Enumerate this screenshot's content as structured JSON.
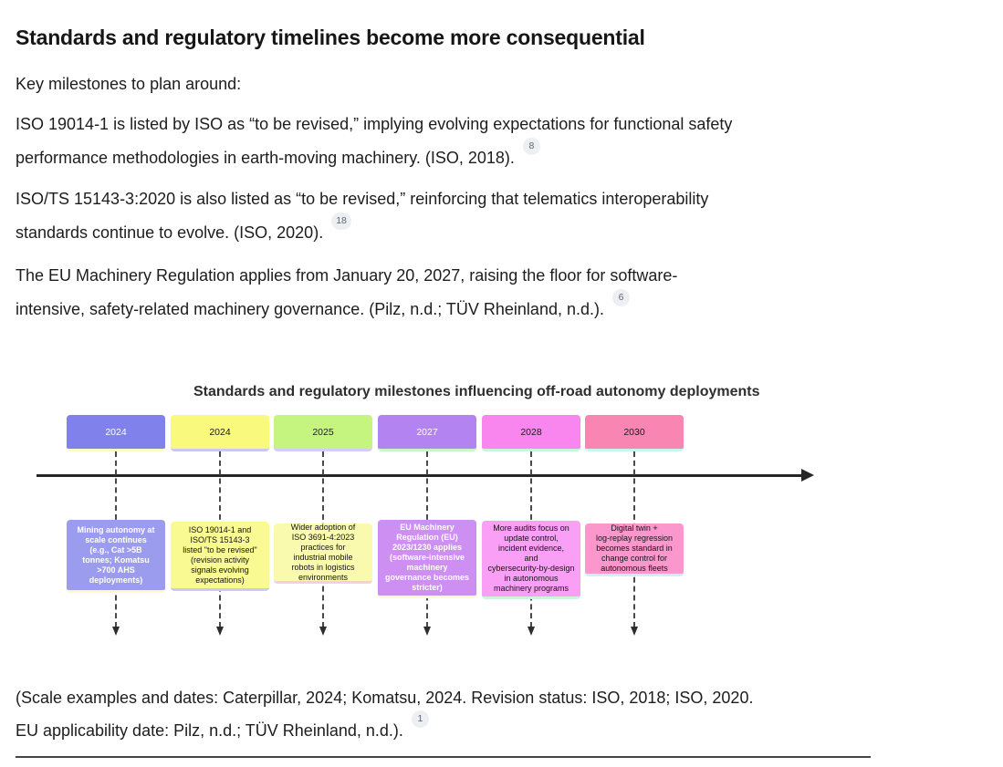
{
  "page": {
    "heading": "Standards and regulatory timelines become more consequential",
    "intro": "Key milestones to plan around:",
    "paragraphs": [
      {
        "lines": [
          "ISO 19014-1 is listed by ISO as “to be revised,” implying evolving expectations for functional safety",
          "performance methodologies in earth-moving machinery. (ISO, 2018)."
        ],
        "citation": "8"
      },
      {
        "lines": [
          "ISO/TS 15143-3:2020 is also listed as “to be revised,” reinforcing that telematics interoperability",
          "standards continue to evolve. (ISO, 2020)."
        ],
        "citation": "18"
      },
      {
        "lines": [
          "The EU Machinery Regulation applies from January 20, 2027, raising the floor for software-",
          "intensive, safety-related machinery governance. (Pilz, n.d.; TÜV Rheinland, n.d.)."
        ],
        "citation": "6"
      }
    ],
    "caption": {
      "lines": [
        "(Scale examples and dates: Caterpillar, 2024; Komatsu, 2024. Revision status: ISO, 2018; ISO, 2020.",
        "EU applicability date: Pilz, n.d.; TÜV Rheinland, n.d.)."
      ],
      "citation": "1"
    }
  },
  "chart_data": {
    "type": "timeline",
    "title": "Standards and regulatory milestones influencing off-road autonomy deployments",
    "axis_color": "#262626",
    "milestones": [
      {
        "year": "2024",
        "description": "Mining autonomy at\nscale continues\n(e.g., Cat >5B\ntonnes; Komatsu\n>700 AHS\ndeployments)",
        "year_color": "#8181ec",
        "year_text_color": "#ffffff",
        "year_accent": "#fbfbc1",
        "desc_color": "#9c9cee",
        "desc_text_color": "#ffffff",
        "desc_accent": "#fbfbc6",
        "desc_bold": true
      },
      {
        "year": "2024",
        "description": "ISO 19014-1 and\nISO/TS 15143-3\nlisted \"to be revised\"\n(revision activity\nsignals evolving\nexpectations)",
        "year_color": "#f9f97d",
        "year_text_color": "#1a1a1a",
        "year_accent": "#c9c9f7",
        "desc_color": "#fafa93",
        "desc_text_color": "#141414",
        "desc_accent": "#cdc9f7",
        "desc_bold": false
      },
      {
        "year": "2025",
        "description": "Wider adoption of\nISO 3691-4:2023\npractices for\nindustrial mobile\nrobots in logistics\nenvironments",
        "year_color": "#c6f57f",
        "year_text_color": "#1a1a1a",
        "year_accent": "#d7cdf8",
        "desc_color": "#fafaae",
        "desc_text_color": "#141414",
        "desc_accent": "#f6cde6",
        "desc_bold": false
      },
      {
        "year": "2027",
        "description": "EU Machinery\nRegulation (EU)\n2023/1230 applies\n(software-intensive\nmachinery\ngovernance becomes\nstricter)",
        "year_color": "#b383f1",
        "year_text_color": "#ffffff",
        "year_accent": "#c9f6c9",
        "desc_color": "#ce8ff3",
        "desc_text_color": "#ffffff",
        "desc_accent": "#fbfbce",
        "desc_bold": true
      },
      {
        "year": "2028",
        "description": "More audits focus on\nupdate control,\nincident evidence,\nand\ncybersecurity-by-design\nin autonomous\nmachinery programs",
        "year_color": "#f985ef",
        "year_text_color": "#1a1a1a",
        "year_accent": "#c9f6da",
        "desc_color": "#fa9ff6",
        "desc_text_color": "#141414",
        "desc_accent": "#ccf6dc",
        "desc_bold": false
      },
      {
        "year": "2030",
        "description": "Digital twin +\nlog-replay regression\nbecomes standard in\nchange control for\nautonomous fleets",
        "year_color": "#f985b2",
        "year_text_color": "#1a1a1a",
        "year_accent": "#c9f6ec",
        "desc_color": "#fb97cd",
        "desc_text_color": "#141414",
        "desc_accent": "#ccf0f6",
        "desc_bold": false
      }
    ]
  }
}
